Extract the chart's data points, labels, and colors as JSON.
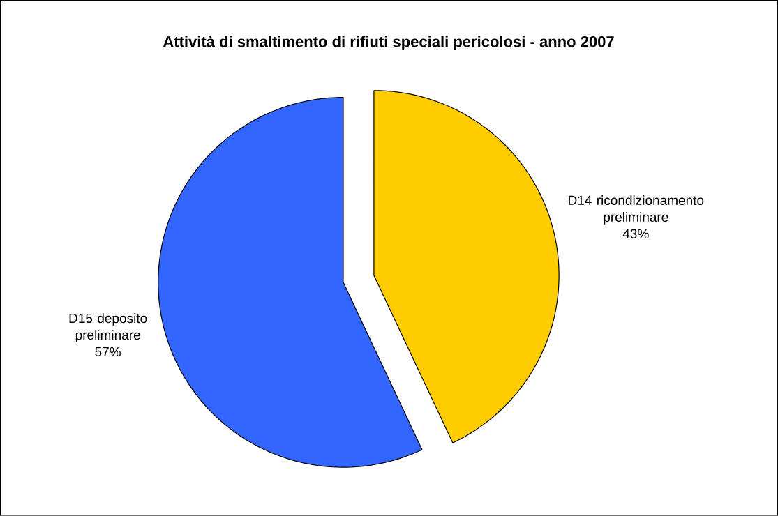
{
  "chart_data": {
    "type": "pie",
    "title": "Attività di smaltimento di rifiuti speciali pericolosi - anno 2007",
    "categories": [
      "D14 ricondizionamento preliminare",
      "D15 deposito preliminare"
    ],
    "values": [
      43,
      57
    ],
    "colors": [
      "#ffcc00",
      "#3366ff"
    ],
    "value_labels": [
      "43%",
      "57%"
    ]
  }
}
